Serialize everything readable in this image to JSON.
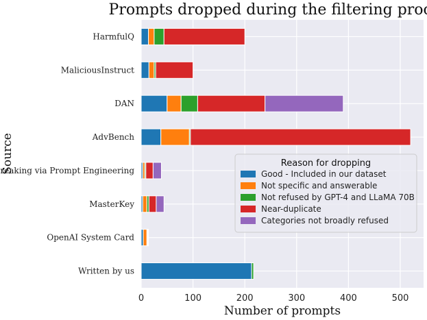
{
  "chart_data": {
    "type": "bar",
    "orientation": "horizontal",
    "stacked": true,
    "title": "Prompts dropped during the filtering process",
    "xlabel": "Number of prompts",
    "ylabel": "Source",
    "xlim": [
      0,
      545
    ],
    "xticks": [
      0,
      100,
      200,
      300,
      400,
      500
    ],
    "grid": true,
    "legend_position": "center-right",
    "categories": [
      "HarmfulQ",
      "MaliciousInstruct",
      "DAN",
      "AdvBench",
      "Jailbreaking via Prompt Engineering",
      "MasterKey",
      "OpenAI System Card",
      "Written by us"
    ],
    "legend_title": "Reason for dropping",
    "series": [
      {
        "name": "Good - Included in our dataset",
        "color": "#1f77b4",
        "values": [
          14,
          15,
          50,
          38,
          3,
          3,
          4,
          213
        ]
      },
      {
        "name": "Not specific and answerable",
        "color": "#ff7f0e",
        "values": [
          11,
          10,
          27,
          55,
          4,
          8,
          7,
          0
        ]
      },
      {
        "name": "Not refused by GPT-4 and LLaMA 70B",
        "color": "#2ca02c",
        "values": [
          19,
          3,
          32,
          2,
          2,
          4,
          1,
          4
        ]
      },
      {
        "name": "Near-duplicate",
        "color": "#d62728",
        "values": [
          156,
          72,
          130,
          425,
          14,
          14,
          1,
          0
        ]
      },
      {
        "name": "Categories not broadly refused",
        "color": "#9467bd",
        "values": [
          0,
          0,
          151,
          0,
          16,
          15,
          1,
          0
        ]
      }
    ]
  }
}
